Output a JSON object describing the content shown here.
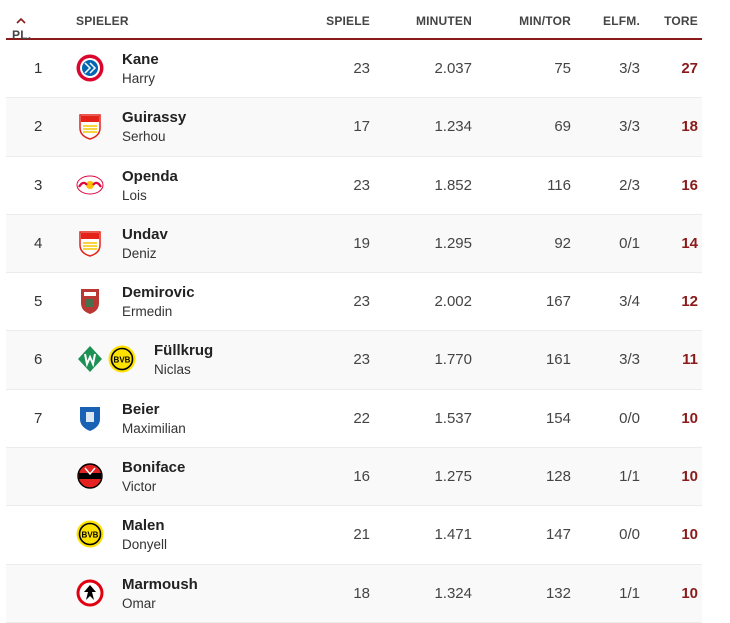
{
  "header": {
    "pl": "PL.",
    "spieler": "SPIELER",
    "spiele": "SPIELE",
    "minuten": "MINUTEN",
    "mintor": "MIN/TOR",
    "elfm": "ELFM.",
    "tore": "TORE"
  },
  "colors": {
    "accent": "#8b1a1a"
  },
  "rows": [
    {
      "rank": "1",
      "last": "Kane",
      "first": "Harry",
      "spiele": "23",
      "minuten": "2.037",
      "mintor": "75",
      "elfm": "3/3",
      "tore": "27",
      "crests": [
        "fc-bayern-crest"
      ]
    },
    {
      "rank": "2",
      "last": "Guirassy",
      "first": "Serhou",
      "spiele": "17",
      "minuten": "1.234",
      "mintor": "69",
      "elfm": "3/3",
      "tore": "18",
      "crests": [
        "vfb-stuttgart-crest"
      ]
    },
    {
      "rank": "3",
      "last": "Openda",
      "first": "Lois",
      "spiele": "23",
      "minuten": "1.852",
      "mintor": "116",
      "elfm": "2/3",
      "tore": "16",
      "crests": [
        "rb-leipzig-crest"
      ]
    },
    {
      "rank": "4",
      "last": "Undav",
      "first": "Deniz",
      "spiele": "19",
      "minuten": "1.295",
      "mintor": "92",
      "elfm": "0/1",
      "tore": "14",
      "crests": [
        "vfb-stuttgart-crest"
      ]
    },
    {
      "rank": "5",
      "last": "Demirovic",
      "first": "Ermedin",
      "spiele": "23",
      "minuten": "2.002",
      "mintor": "167",
      "elfm": "3/4",
      "tore": "12",
      "crests": [
        "fc-augsburg-crest"
      ]
    },
    {
      "rank": "6",
      "last": "Füllkrug",
      "first": "Niclas",
      "spiele": "23",
      "minuten": "1.770",
      "mintor": "161",
      "elfm": "3/3",
      "tore": "11",
      "crests": [
        "werder-bremen-crest",
        "bvb-crest"
      ]
    },
    {
      "rank": "7",
      "last": "Beier",
      "first": "Maximilian",
      "spiele": "22",
      "minuten": "1.537",
      "mintor": "154",
      "elfm": "0/0",
      "tore": "10",
      "crests": [
        "hoffenheim-crest"
      ]
    },
    {
      "rank": "",
      "last": "Boniface",
      "first": "Victor",
      "spiele": "16",
      "minuten": "1.275",
      "mintor": "128",
      "elfm": "1/1",
      "tore": "10",
      "crests": [
        "leverkusen-crest"
      ]
    },
    {
      "rank": "",
      "last": "Malen",
      "first": "Donyell",
      "spiele": "21",
      "minuten": "1.471",
      "mintor": "147",
      "elfm": "0/0",
      "tore": "10",
      "crests": [
        "bvb-crest"
      ]
    },
    {
      "rank": "",
      "last": "Marmoush",
      "first": "Omar",
      "spiele": "18",
      "minuten": "1.324",
      "mintor": "132",
      "elfm": "1/1",
      "tore": "10",
      "crests": [
        "eintracht-frankfurt-crest"
      ]
    }
  ]
}
